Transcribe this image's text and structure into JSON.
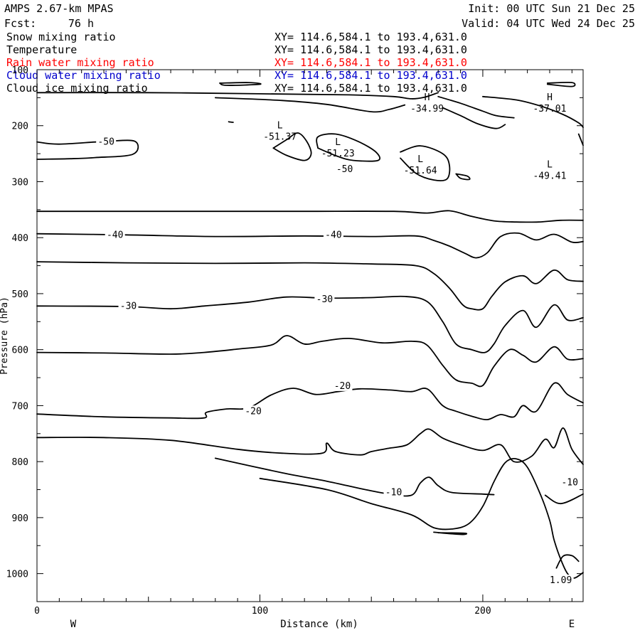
{
  "header": {
    "model": "AMPS 2.67-km MPAS",
    "init": "Init: 00 UTC Sun 21 Dec 25",
    "fcst_label": "Fcst:",
    "fcst_value": "76 h",
    "valid": "Valid: 04 UTC Wed 24 Dec 25"
  },
  "fields": [
    {
      "name": "Snow mixing ratio",
      "xy": "XY= 114.6,584.1 to 193.4,631.0",
      "color": "#000000"
    },
    {
      "name": "Temperature",
      "xy": "XY= 114.6,584.1 to 193.4,631.0",
      "color": "#000000"
    },
    {
      "name": "Rain water mixing ratio",
      "xy": "XY= 114.6,584.1 to 193.4,631.0",
      "color": "#ff0000"
    },
    {
      "name": "Cloud water mixing ratio",
      "xy": "XY= 114.6,584.1 to 193.4,631.0",
      "color": "#0000cc"
    },
    {
      "name": "Cloud ice mixing ratio",
      "xy": "XY= 114.6,584.1 to 193.4,631.0",
      "color": "#000000"
    }
  ],
  "chart_data": {
    "type": "contour",
    "xlabel": "Distance (km)",
    "ylabel": "Pressure (hPa)",
    "xlim": [
      0,
      245
    ],
    "ylim": [
      1050,
      100
    ],
    "x_ticks": [
      0,
      100,
      200
    ],
    "y_ticks": [
      100,
      200,
      300,
      400,
      500,
      600,
      700,
      800,
      900,
      1000
    ],
    "x_end_labels": {
      "left": "W",
      "right": "E"
    },
    "contour_labels": [
      {
        "text": "-50",
        "x": 31,
        "p": 229
      },
      {
        "text": "-50",
        "x": 138,
        "p": 278
      },
      {
        "text": "-40",
        "x": 35,
        "p": 395
      },
      {
        "text": "-40",
        "x": 133,
        "p": 395
      },
      {
        "text": "-30",
        "x": 41,
        "p": 522
      },
      {
        "text": "-30",
        "x": 129,
        "p": 510
      },
      {
        "text": "-20",
        "x": 137,
        "p": 665
      },
      {
        "text": "-20",
        "x": 97,
        "p": 710
      },
      {
        "text": "-10",
        "x": 160,
        "p": 855
      },
      {
        "text": "-10",
        "x": 239,
        "p": 837
      },
      {
        "text": "1.09",
        "x": 235,
        "p": 1012
      }
    ],
    "extrema": [
      {
        "kind": "L",
        "value": "-51.37",
        "x": 109,
        "p": 210
      },
      {
        "kind": "L",
        "value": "-51.23",
        "x": 135,
        "p": 240
      },
      {
        "kind": "L",
        "value": "-51.64",
        "x": 172,
        "p": 270
      },
      {
        "kind": "H",
        "value": "-34.99",
        "x": 175,
        "p": 160
      },
      {
        "kind": "H",
        "value": "-37.01",
        "x": 230,
        "p": 160
      },
      {
        "kind": "L",
        "value": "-49.41",
        "x": 230,
        "p": 280
      }
    ],
    "contours": [
      {
        "level": -50,
        "points": [
          [
            0,
            229
          ],
          [
            10,
            233
          ],
          [
            31,
            228
          ],
          [
            44,
            228
          ],
          [
            43,
            251
          ],
          [
            26,
            257
          ],
          [
            15,
            259
          ],
          [
            0,
            260
          ]
        ]
      },
      {
        "level": -40,
        "points": [
          [
            0,
            353
          ],
          [
            40,
            353
          ],
          [
            80,
            353
          ],
          [
            120,
            353
          ],
          [
            160,
            353
          ],
          [
            175,
            356
          ],
          [
            185,
            352
          ],
          [
            195,
            362
          ],
          [
            205,
            370
          ],
          [
            215,
            372
          ],
          [
            225,
            372
          ],
          [
            235,
            369
          ],
          [
            245,
            369
          ]
        ]
      },
      {
        "level": -40,
        "points": [
          [
            0,
            393
          ],
          [
            40,
            395
          ],
          [
            80,
            398
          ],
          [
            120,
            397
          ],
          [
            150,
            398
          ],
          [
            170,
            397
          ],
          [
            178,
            405
          ],
          [
            185,
            415
          ],
          [
            192,
            428
          ],
          [
            197,
            436
          ],
          [
            202,
            427
          ],
          [
            208,
            398
          ],
          [
            216,
            392
          ],
          [
            224,
            404
          ],
          [
            232,
            394
          ],
          [
            240,
            408
          ],
          [
            245,
            407
          ]
        ]
      },
      {
        "level": -40,
        "points": [
          [
            0,
            443
          ],
          [
            40,
            445
          ],
          [
            80,
            446
          ],
          [
            120,
            445
          ],
          [
            150,
            447
          ],
          [
            170,
            450
          ],
          [
            178,
            464
          ],
          [
            185,
            490
          ],
          [
            191,
            520
          ],
          [
            195,
            527
          ],
          [
            200,
            527
          ],
          [
            204,
            505
          ],
          [
            210,
            479
          ],
          [
            218,
            468
          ],
          [
            224,
            482
          ],
          [
            232,
            458
          ],
          [
            238,
            475
          ],
          [
            245,
            478
          ]
        ]
      },
      {
        "level": -30,
        "points": [
          [
            0,
            522
          ],
          [
            40,
            523
          ],
          [
            60,
            527
          ],
          [
            75,
            522
          ],
          [
            95,
            515
          ],
          [
            112,
            506
          ],
          [
            130,
            508
          ],
          [
            150,
            507
          ],
          [
            165,
            505
          ],
          [
            175,
            514
          ],
          [
            182,
            550
          ],
          [
            188,
            590
          ],
          [
            195,
            600
          ],
          [
            201,
            605
          ],
          [
            205,
            590
          ],
          [
            210,
            557
          ],
          [
            218,
            530
          ],
          [
            224,
            560
          ],
          [
            232,
            520
          ],
          [
            238,
            547
          ],
          [
            245,
            543
          ]
        ]
      },
      {
        "level": -30,
        "points": [
          [
            0,
            605
          ],
          [
            30,
            606
          ],
          [
            60,
            608
          ],
          [
            75,
            605
          ],
          [
            90,
            599
          ],
          [
            105,
            592
          ],
          [
            112,
            575
          ],
          [
            120,
            590
          ],
          [
            128,
            585
          ],
          [
            140,
            580
          ],
          [
            155,
            588
          ],
          [
            168,
            585
          ],
          [
            175,
            592
          ],
          [
            182,
            628
          ],
          [
            188,
            654
          ],
          [
            195,
            660
          ],
          [
            200,
            664
          ],
          [
            205,
            630
          ],
          [
            212,
            600
          ],
          [
            218,
            610
          ],
          [
            224,
            622
          ],
          [
            232,
            595
          ],
          [
            238,
            617
          ],
          [
            245,
            616
          ]
        ]
      },
      {
        "level": -20,
        "points": [
          [
            0,
            715
          ],
          [
            30,
            720
          ],
          [
            60,
            722
          ],
          [
            75,
            722
          ],
          [
            76,
            712
          ],
          [
            85,
            706
          ],
          [
            95,
            704
          ],
          [
            105,
            681
          ],
          [
            115,
            669
          ],
          [
            125,
            680
          ],
          [
            135,
            675
          ],
          [
            145,
            670
          ],
          [
            158,
            672
          ],
          [
            168,
            675
          ],
          [
            175,
            670
          ],
          [
            182,
            700
          ],
          [
            188,
            710
          ],
          [
            196,
            720
          ],
          [
            202,
            725
          ],
          [
            208,
            716
          ],
          [
            214,
            720
          ],
          [
            218,
            700
          ],
          [
            224,
            710
          ],
          [
            232,
            660
          ],
          [
            238,
            680
          ],
          [
            245,
            695
          ]
        ]
      },
      {
        "level": -10,
        "points": [
          [
            0,
            757
          ],
          [
            30,
            757
          ],
          [
            60,
            762
          ],
          [
            90,
            778
          ],
          [
            110,
            785
          ],
          [
            128,
            785
          ],
          [
            130,
            767
          ],
          [
            134,
            782
          ],
          [
            145,
            788
          ],
          [
            150,
            782
          ],
          [
            158,
            776
          ],
          [
            166,
            770
          ],
          [
            172,
            750
          ],
          [
            176,
            742
          ],
          [
            182,
            758
          ],
          [
            190,
            770
          ],
          [
            200,
            780
          ],
          [
            208,
            770
          ],
          [
            214,
            800
          ],
          [
            222,
            790
          ],
          [
            228,
            760
          ],
          [
            232,
            775
          ],
          [
            236,
            740
          ],
          [
            240,
            778
          ],
          [
            245,
            805
          ]
        ]
      },
      {
        "level": -10,
        "points": [
          [
            80,
            794
          ],
          [
            110,
            820
          ],
          [
            130,
            835
          ],
          [
            145,
            848
          ],
          [
            158,
            858
          ],
          [
            168,
            860
          ],
          [
            172,
            838
          ],
          [
            176,
            828
          ],
          [
            180,
            843
          ],
          [
            186,
            855
          ],
          [
            200,
            858
          ],
          [
            205,
            859
          ]
        ]
      },
      {
        "level": -10,
        "points": [
          [
            228,
            860
          ],
          [
            235,
            875
          ],
          [
            245,
            858
          ]
        ]
      },
      {
        "level": 0,
        "points": [
          [
            100,
            830
          ],
          [
            130,
            850
          ],
          [
            150,
            875
          ],
          [
            168,
            895
          ],
          [
            178,
            918
          ],
          [
            187,
            920
          ],
          [
            194,
            910
          ],
          [
            200,
            880
          ],
          [
            205,
            836
          ],
          [
            210,
            802
          ],
          [
            215,
            795
          ],
          [
            220,
            810
          ],
          [
            226,
            860
          ],
          [
            230,
            905
          ],
          [
            232,
            940
          ],
          [
            235,
            975
          ],
          [
            238,
            1000
          ],
          [
            241,
            1008
          ],
          [
            245,
            998
          ]
        ]
      },
      {
        "level": 0,
        "points": [
          [
            178,
            926
          ],
          [
            190,
            930
          ],
          [
            192,
            928
          ],
          [
            180,
            927
          ]
        ]
      },
      {
        "level": 0,
        "points": [
          [
            233,
            990
          ],
          [
            236,
            969
          ],
          [
            240,
            968
          ],
          [
            243,
            978
          ]
        ]
      },
      {
        "level": -50,
        "points": [
          [
            106,
            240
          ],
          [
            112,
            253
          ],
          [
            120,
            262
          ],
          [
            123,
            250
          ],
          [
            121,
            228
          ],
          [
            117,
            213
          ],
          [
            112,
            225
          ],
          [
            106,
            240
          ]
        ]
      },
      {
        "level": -50,
        "points": [
          [
            126,
            240
          ],
          [
            135,
            255
          ],
          [
            142,
            262
          ],
          [
            153,
            262
          ],
          [
            152,
            247
          ],
          [
            144,
            228
          ],
          [
            134,
            215
          ],
          [
            126,
            220
          ],
          [
            126,
            240
          ]
        ]
      },
      {
        "level": -50,
        "points": [
          [
            163,
            258
          ],
          [
            170,
            285
          ],
          [
            178,
            297
          ],
          [
            184,
            295
          ],
          [
            185,
            270
          ],
          [
            182,
            250
          ],
          [
            172,
            236
          ],
          [
            163,
            247
          ]
        ]
      },
      {
        "level": -40,
        "points": [
          [
            188,
            286
          ],
          [
            193,
            290
          ],
          [
            194,
            296
          ],
          [
            190,
            294
          ],
          [
            188,
            286
          ]
        ]
      },
      {
        "level": -40,
        "points": [
          [
            0,
            141
          ],
          [
            50,
            141
          ],
          [
            100,
            143
          ],
          [
            140,
            145
          ],
          [
            160,
            148
          ],
          [
            168,
            152
          ],
          [
            174,
            149
          ],
          [
            180,
            141
          ]
        ]
      },
      {
        "level": -40,
        "points": [
          [
            80,
            150
          ],
          [
            110,
            155
          ],
          [
            130,
            162
          ],
          [
            150,
            175
          ],
          [
            158,
            171
          ],
          [
            165,
            163
          ]
        ]
      },
      {
        "level": -40,
        "points": [
          [
            180,
            148
          ],
          [
            190,
            160
          ],
          [
            200,
            174
          ],
          [
            206,
            182
          ],
          [
            214,
            186
          ]
        ]
      },
      {
        "level": -40,
        "points": [
          [
            182,
            168
          ],
          [
            190,
            182
          ],
          [
            198,
            197
          ],
          [
            206,
            205
          ],
          [
            210,
            198
          ]
        ]
      },
      {
        "level": -40,
        "points": [
          [
            200,
            148
          ],
          [
            215,
            154
          ],
          [
            226,
            165
          ],
          [
            236,
            180
          ],
          [
            243,
            195
          ],
          [
            245,
            203
          ]
        ]
      },
      {
        "level": -40,
        "points": [
          [
            243,
            215
          ],
          [
            245,
            235
          ]
        ]
      },
      {
        "level": -40,
        "points": [
          [
            229,
            124
          ],
          [
            240,
            123
          ],
          [
            240,
            130
          ],
          [
            229,
            126
          ]
        ]
      },
      {
        "level": -40,
        "points": [
          [
            82,
            124
          ],
          [
            95,
            123
          ],
          [
            100,
            126
          ],
          [
            85,
            128
          ],
          [
            82,
            124
          ]
        ]
      },
      {
        "level": -40,
        "points": [
          [
            86,
            193
          ],
          [
            88,
            194
          ]
        ]
      }
    ]
  }
}
